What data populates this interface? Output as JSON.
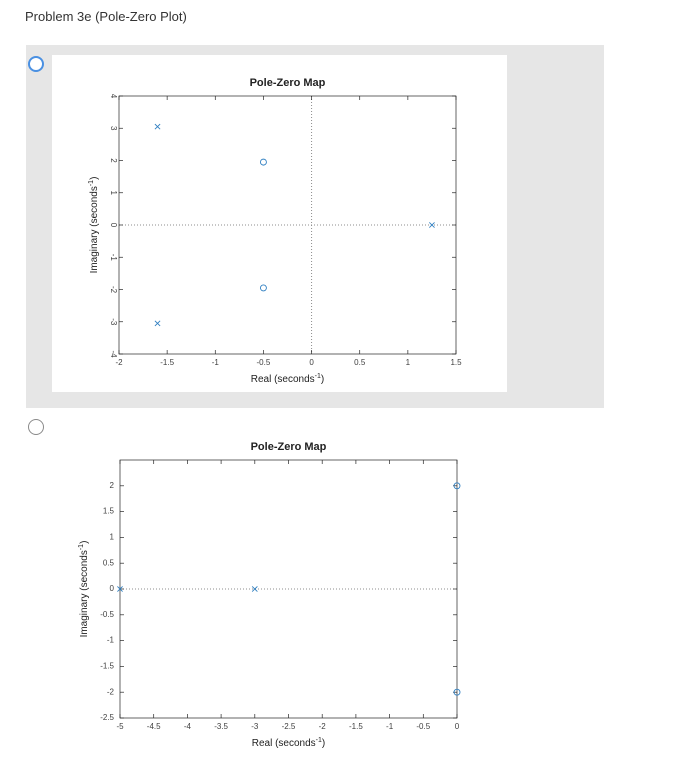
{
  "page": {
    "title": "Problem 3e (Pole-Zero Plot)"
  },
  "options": [
    {
      "selected": true
    },
    {
      "selected": false
    }
  ],
  "colors": {
    "accent": "#4a90e2",
    "marker": "#2f7fc1",
    "option_selected_bg": "#e6e6e6"
  },
  "chart_data": [
    {
      "type": "scatter",
      "title": "Pole-Zero Map",
      "xlabel": "Real (seconds",
      "ylabel": "Imaginary (seconds",
      "unit_exponent": "-1",
      "xlim": [
        -2,
        1.5
      ],
      "ylim": [
        -4,
        4
      ],
      "xticks": [
        -2,
        -1.5,
        -1,
        -0.5,
        0,
        0.5,
        1,
        1.5
      ],
      "yticks": [
        -4,
        -3,
        -2,
        -1,
        0,
        1,
        2,
        3,
        4
      ],
      "xtick_labels": [
        "-2",
        "-1.5",
        "-1",
        "-0.5",
        "0",
        "0.5",
        "1",
        "1.5"
      ],
      "ytick_labels": [
        "-4",
        "-3",
        "-2",
        "-1",
        "0",
        "1",
        "2",
        "3",
        "4"
      ],
      "poles": [
        {
          "x": -1.6,
          "y": 3.05
        },
        {
          "x": -1.6,
          "y": -3.05
        },
        {
          "x": 1.25,
          "y": 0
        }
      ],
      "zeros": [
        {
          "x": -0.5,
          "y": 1.95
        },
        {
          "x": -0.5,
          "y": -1.95
        }
      ],
      "grid": false
    },
    {
      "type": "scatter",
      "title": "Pole-Zero Map",
      "xlabel": "Real (seconds",
      "ylabel": "Imaginary (seconds",
      "unit_exponent": "-1",
      "xlim": [
        -5,
        0
      ],
      "ylim": [
        -2.5,
        2.5
      ],
      "xticks": [
        -5,
        -4.5,
        -4,
        -3.5,
        -3,
        -2.5,
        -2,
        -1.5,
        -1,
        -0.5,
        0
      ],
      "yticks": [
        -2.5,
        -2,
        -1.5,
        -1,
        -0.5,
        0,
        0.5,
        1,
        1.5,
        2
      ],
      "xtick_labels": [
        "-5",
        "-4.5",
        "-4",
        "-3.5",
        "-3",
        "-2.5",
        "-2",
        "-1.5",
        "-1",
        "-0.5",
        "0"
      ],
      "ytick_labels": [
        "-2.5",
        "-2",
        "-1.5",
        "-1",
        "-0.5",
        "0",
        "0.5",
        "1",
        "1.5",
        "2"
      ],
      "poles": [
        {
          "x": -5,
          "y": 0
        },
        {
          "x": -3,
          "y": 0
        }
      ],
      "zeros": [
        {
          "x": 0,
          "y": 2
        },
        {
          "x": 0,
          "y": -2
        }
      ],
      "grid": false
    }
  ]
}
